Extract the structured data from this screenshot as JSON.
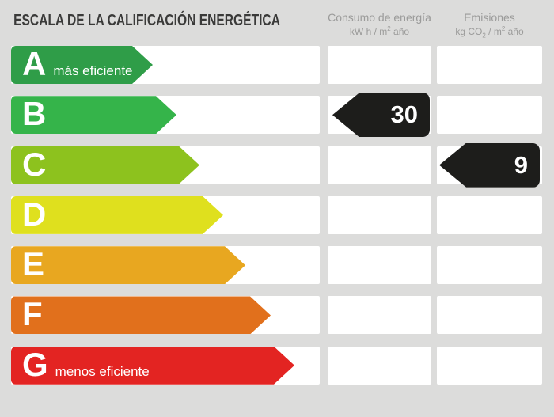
{
  "title": "ESCALA DE LA CALIFICACIÓN ENERGÉTICA",
  "columns": {
    "consumo": {
      "title": "Consumo de energía",
      "unit": {
        "p1": "kW h / m",
        "sup": "2",
        "p2": " año"
      }
    },
    "emisiones": {
      "title": "Emisiones",
      "unit": {
        "p1": "kg CO",
        "sub": "2",
        "p2": " / m",
        "sup": "2",
        "p3": " año"
      }
    }
  },
  "colors": {
    "background": "#dcdcdb",
    "cell": "#ffffff",
    "badge": "#1d1d1b",
    "title_text": "#3a3a39",
    "header_text": "#9b9b9a"
  },
  "ratings": [
    {
      "letter": "A",
      "note": "más eficiente",
      "color": "#2f9d48",
      "arrow_width": 179,
      "consumo": null,
      "emisiones": null
    },
    {
      "letter": "B",
      "note": "",
      "color": "#35b44a",
      "arrow_width": 209,
      "consumo": "30",
      "emisiones": null
    },
    {
      "letter": "C",
      "note": "",
      "color": "#8dc21e",
      "arrow_width": 238,
      "consumo": null,
      "emisiones": "9"
    },
    {
      "letter": "D",
      "note": "",
      "color": "#dfe01e",
      "arrow_width": 268,
      "consumo": null,
      "emisiones": null
    },
    {
      "letter": "E",
      "note": "",
      "color": "#e8a720",
      "arrow_width": 296,
      "consumo": null,
      "emisiones": null
    },
    {
      "letter": "F",
      "note": "",
      "color": "#e1701c",
      "arrow_width": 328,
      "consumo": null,
      "emisiones": null
    },
    {
      "letter": "G",
      "note": "menos eficiente",
      "color": "#e32422",
      "arrow_width": 358,
      "consumo": null,
      "emisiones": null
    }
  ],
  "chart_data": {
    "type": "bar",
    "title": "ESCALA DE LA CALIFICACIÓN ENERGÉTICA",
    "categories": [
      "A",
      "B",
      "C",
      "D",
      "E",
      "F",
      "G"
    ],
    "series": [
      {
        "name": "Consumo de energía (kW h / m2 año)",
        "values": [
          null,
          30,
          null,
          null,
          null,
          null,
          null
        ]
      },
      {
        "name": "Emisiones (kg CO2 / m2 año)",
        "values": [
          null,
          null,
          9,
          null,
          null,
          null,
          null
        ]
      }
    ],
    "bar_colors": [
      "#2f9d48",
      "#35b44a",
      "#8dc21e",
      "#dfe01e",
      "#e8a720",
      "#e1701c",
      "#e32422"
    ],
    "annotations": [
      "A = más eficiente",
      "G = menos eficiente",
      "rated consumption: B 30",
      "rated emissions: C 9"
    ],
    "legend_position": "top",
    "grid": false
  }
}
